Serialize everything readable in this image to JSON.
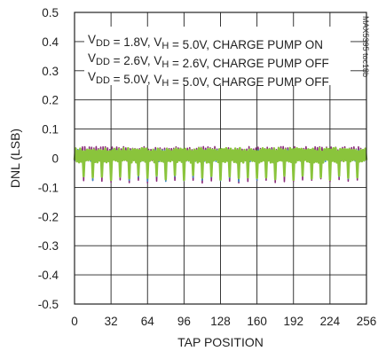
{
  "chart_data": {
    "type": "line",
    "title": "",
    "xlabel": "TAP POSITION",
    "ylabel": "DNL (LSB)",
    "xlim": [
      0,
      256
    ],
    "ylim": [
      -0.5,
      0.5
    ],
    "xticks": [
      0,
      32,
      64,
      96,
      128,
      160,
      192,
      224,
      256
    ],
    "yticks": [
      0.5,
      0.4,
      0.3,
      0.2,
      0.1,
      0,
      -0.1,
      -0.2,
      -0.3,
      -0.4,
      -0.5
    ],
    "ytick_labels": [
      "0.5",
      "0.4",
      "0.3",
      "0.2",
      "0.1",
      "0",
      "-0.1",
      "-0.2",
      "-0.3",
      "-0.4",
      "-0.5"
    ],
    "grid": true,
    "legend_position": "top",
    "legend": [
      "VDD = 1.8V, VH = 5.0V, CHARGE PUMP ON",
      "VDD = 2.6V, VH = 2.6V, CHARGE PUMP OFF",
      "VDD = 5.0V, VH = 5.0V, CHARGE PUMP OFF"
    ],
    "series": [
      {
        "color": "#8a2a7a",
        "pattern": {
          "base": 0.01,
          "peak": 0.04,
          "dip_every": 8,
          "dip_value": -0.08,
          "minor_dip_value": -0.03
        },
        "x_range": [
          0,
          256
        ]
      },
      {
        "color": "#3a8ac8",
        "pattern": {
          "base": 0.008,
          "peak": 0.03,
          "dip_every": 8,
          "dip_value": -0.075,
          "minor_dip_value": -0.025
        },
        "x_range": [
          0,
          256
        ]
      },
      {
        "color": "#8ac43c",
        "pattern": {
          "base": 0.005,
          "peak": 0.035,
          "dip_every": 8,
          "dip_value": -0.07,
          "minor_dip_value": -0.025
        },
        "x_range": [
          0,
          256
        ]
      }
    ],
    "note": "MAX5395 toc18b"
  }
}
